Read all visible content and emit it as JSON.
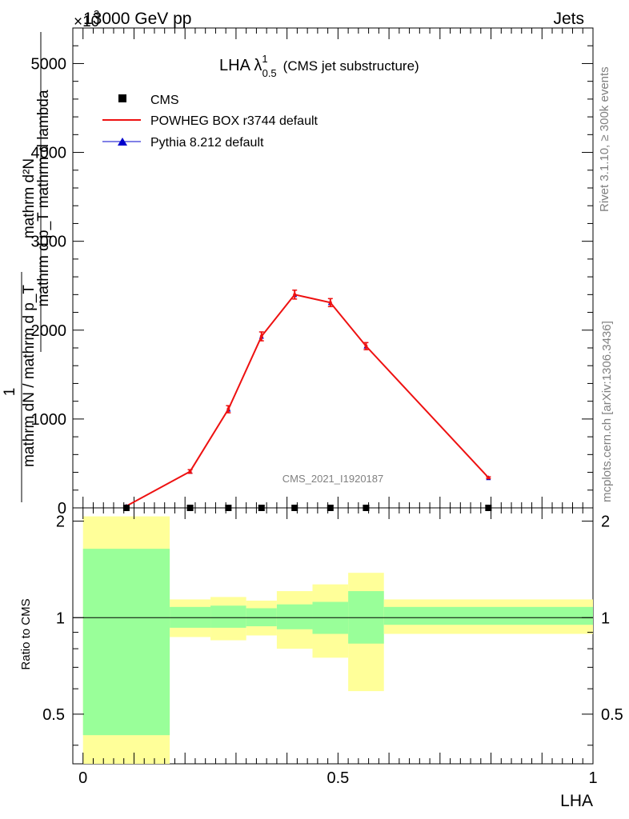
{
  "header": {
    "energy_label": "13000 GeV pp",
    "process_label": "Jets",
    "exponent_label": "×10",
    "exponent_power": "3"
  },
  "side_labels": {
    "rivet": "Rivet 3.1.10, ≥ 300k events",
    "source": "mcplots.cern.ch [arXiv:1306.3436]"
  },
  "watermark": "CMS_2021_I1920187",
  "colors": {
    "cms": "#000000",
    "powheg": "#ee1111",
    "pythia": "#0000cc",
    "band_inner": "#99ff99",
    "band_outer": "#ffff99"
  },
  "chart_data": [
    {
      "type": "line",
      "title_main": "LHA λ",
      "title_sup": "1",
      "title_sub": "0.5",
      "title_suffix": "(CMS jet substructure)",
      "ylabel_numerator": "mathrm d²N",
      "ylabel_denominator": "mathrm d p_T mathrm d lambda",
      "ylabel_factor_num": "1",
      "ylabel_factor_den": "mathrm dN / mathrm d p_T",
      "ylim": [
        0,
        5400
      ],
      "xlim": [
        -0.02,
        1.0
      ],
      "yticks": [
        0,
        1000,
        2000,
        3000,
        4000,
        5000
      ],
      "ytick_labels": [
        "0",
        "1000",
        "2000",
        "3000",
        "4000",
        "5000"
      ],
      "legend": [
        {
          "label": "CMS",
          "marker": "square"
        },
        {
          "label": "POWHEG BOX r3744 default",
          "marker": "line"
        },
        {
          "label": "Pythia 8.212 default",
          "marker": "triangle"
        }
      ],
      "series": [
        {
          "name": "CMS",
          "x": [
            0.085,
            0.21,
            0.285,
            0.35,
            0.415,
            0.485,
            0.555,
            0.795
          ],
          "values": [
            0,
            0,
            0,
            0,
            0,
            0,
            0,
            0
          ]
        },
        {
          "name": "POWHEG BOX r3744 default",
          "x": [
            0.085,
            0.21,
            0.285,
            0.35,
            0.415,
            0.485,
            0.555,
            0.795
          ],
          "values": [
            20,
            410,
            1110,
            1930,
            2400,
            2310,
            1820,
            340
          ],
          "errors": [
            5,
            20,
            40,
            50,
            50,
            45,
            40,
            10
          ]
        },
        {
          "name": "Pythia 8.212 default",
          "x": [
            0.085,
            0.21,
            0.285,
            0.35,
            0.415,
            0.485,
            0.555,
            0.795
          ],
          "values": [
            20,
            410,
            1110,
            1930,
            2400,
            2310,
            1820,
            340
          ]
        }
      ]
    },
    {
      "type": "ratio",
      "ylabel": "Ratio to CMS",
      "xlabel": "LHA",
      "xlim": [
        -0.02,
        1.0
      ],
      "ylim": [
        0.35,
        2.2
      ],
      "xticks": [
        0,
        0.5,
        1
      ],
      "xtick_labels": [
        "0",
        "0.5",
        "1"
      ],
      "yticks": [
        0.5,
        1,
        2
      ],
      "ytick_labels": [
        "0.5",
        "1",
        "2"
      ],
      "bins": [
        {
          "lo": 0.0,
          "hi": 0.17,
          "inner": [
            0.43,
            1.64
          ],
          "outer": [
            0.35,
            2.07
          ]
        },
        {
          "lo": 0.17,
          "hi": 0.25,
          "inner": [
            0.93,
            1.08
          ],
          "outer": [
            0.87,
            1.14
          ]
        },
        {
          "lo": 0.25,
          "hi": 0.32,
          "inner": [
            0.93,
            1.09
          ],
          "outer": [
            0.85,
            1.16
          ]
        },
        {
          "lo": 0.32,
          "hi": 0.38,
          "inner": [
            0.94,
            1.07
          ],
          "outer": [
            0.88,
            1.13
          ]
        },
        {
          "lo": 0.38,
          "hi": 0.45,
          "inner": [
            0.92,
            1.1
          ],
          "outer": [
            0.8,
            1.21
          ]
        },
        {
          "lo": 0.45,
          "hi": 0.52,
          "inner": [
            0.89,
            1.12
          ],
          "outer": [
            0.75,
            1.27
          ]
        },
        {
          "lo": 0.52,
          "hi": 0.59,
          "inner": [
            0.83,
            1.21
          ],
          "outer": [
            0.59,
            1.38
          ]
        },
        {
          "lo": 0.59,
          "hi": 1.0,
          "inner": [
            0.95,
            1.08
          ],
          "outer": [
            0.89,
            1.14
          ]
        }
      ],
      "reference": 1.0
    }
  ]
}
